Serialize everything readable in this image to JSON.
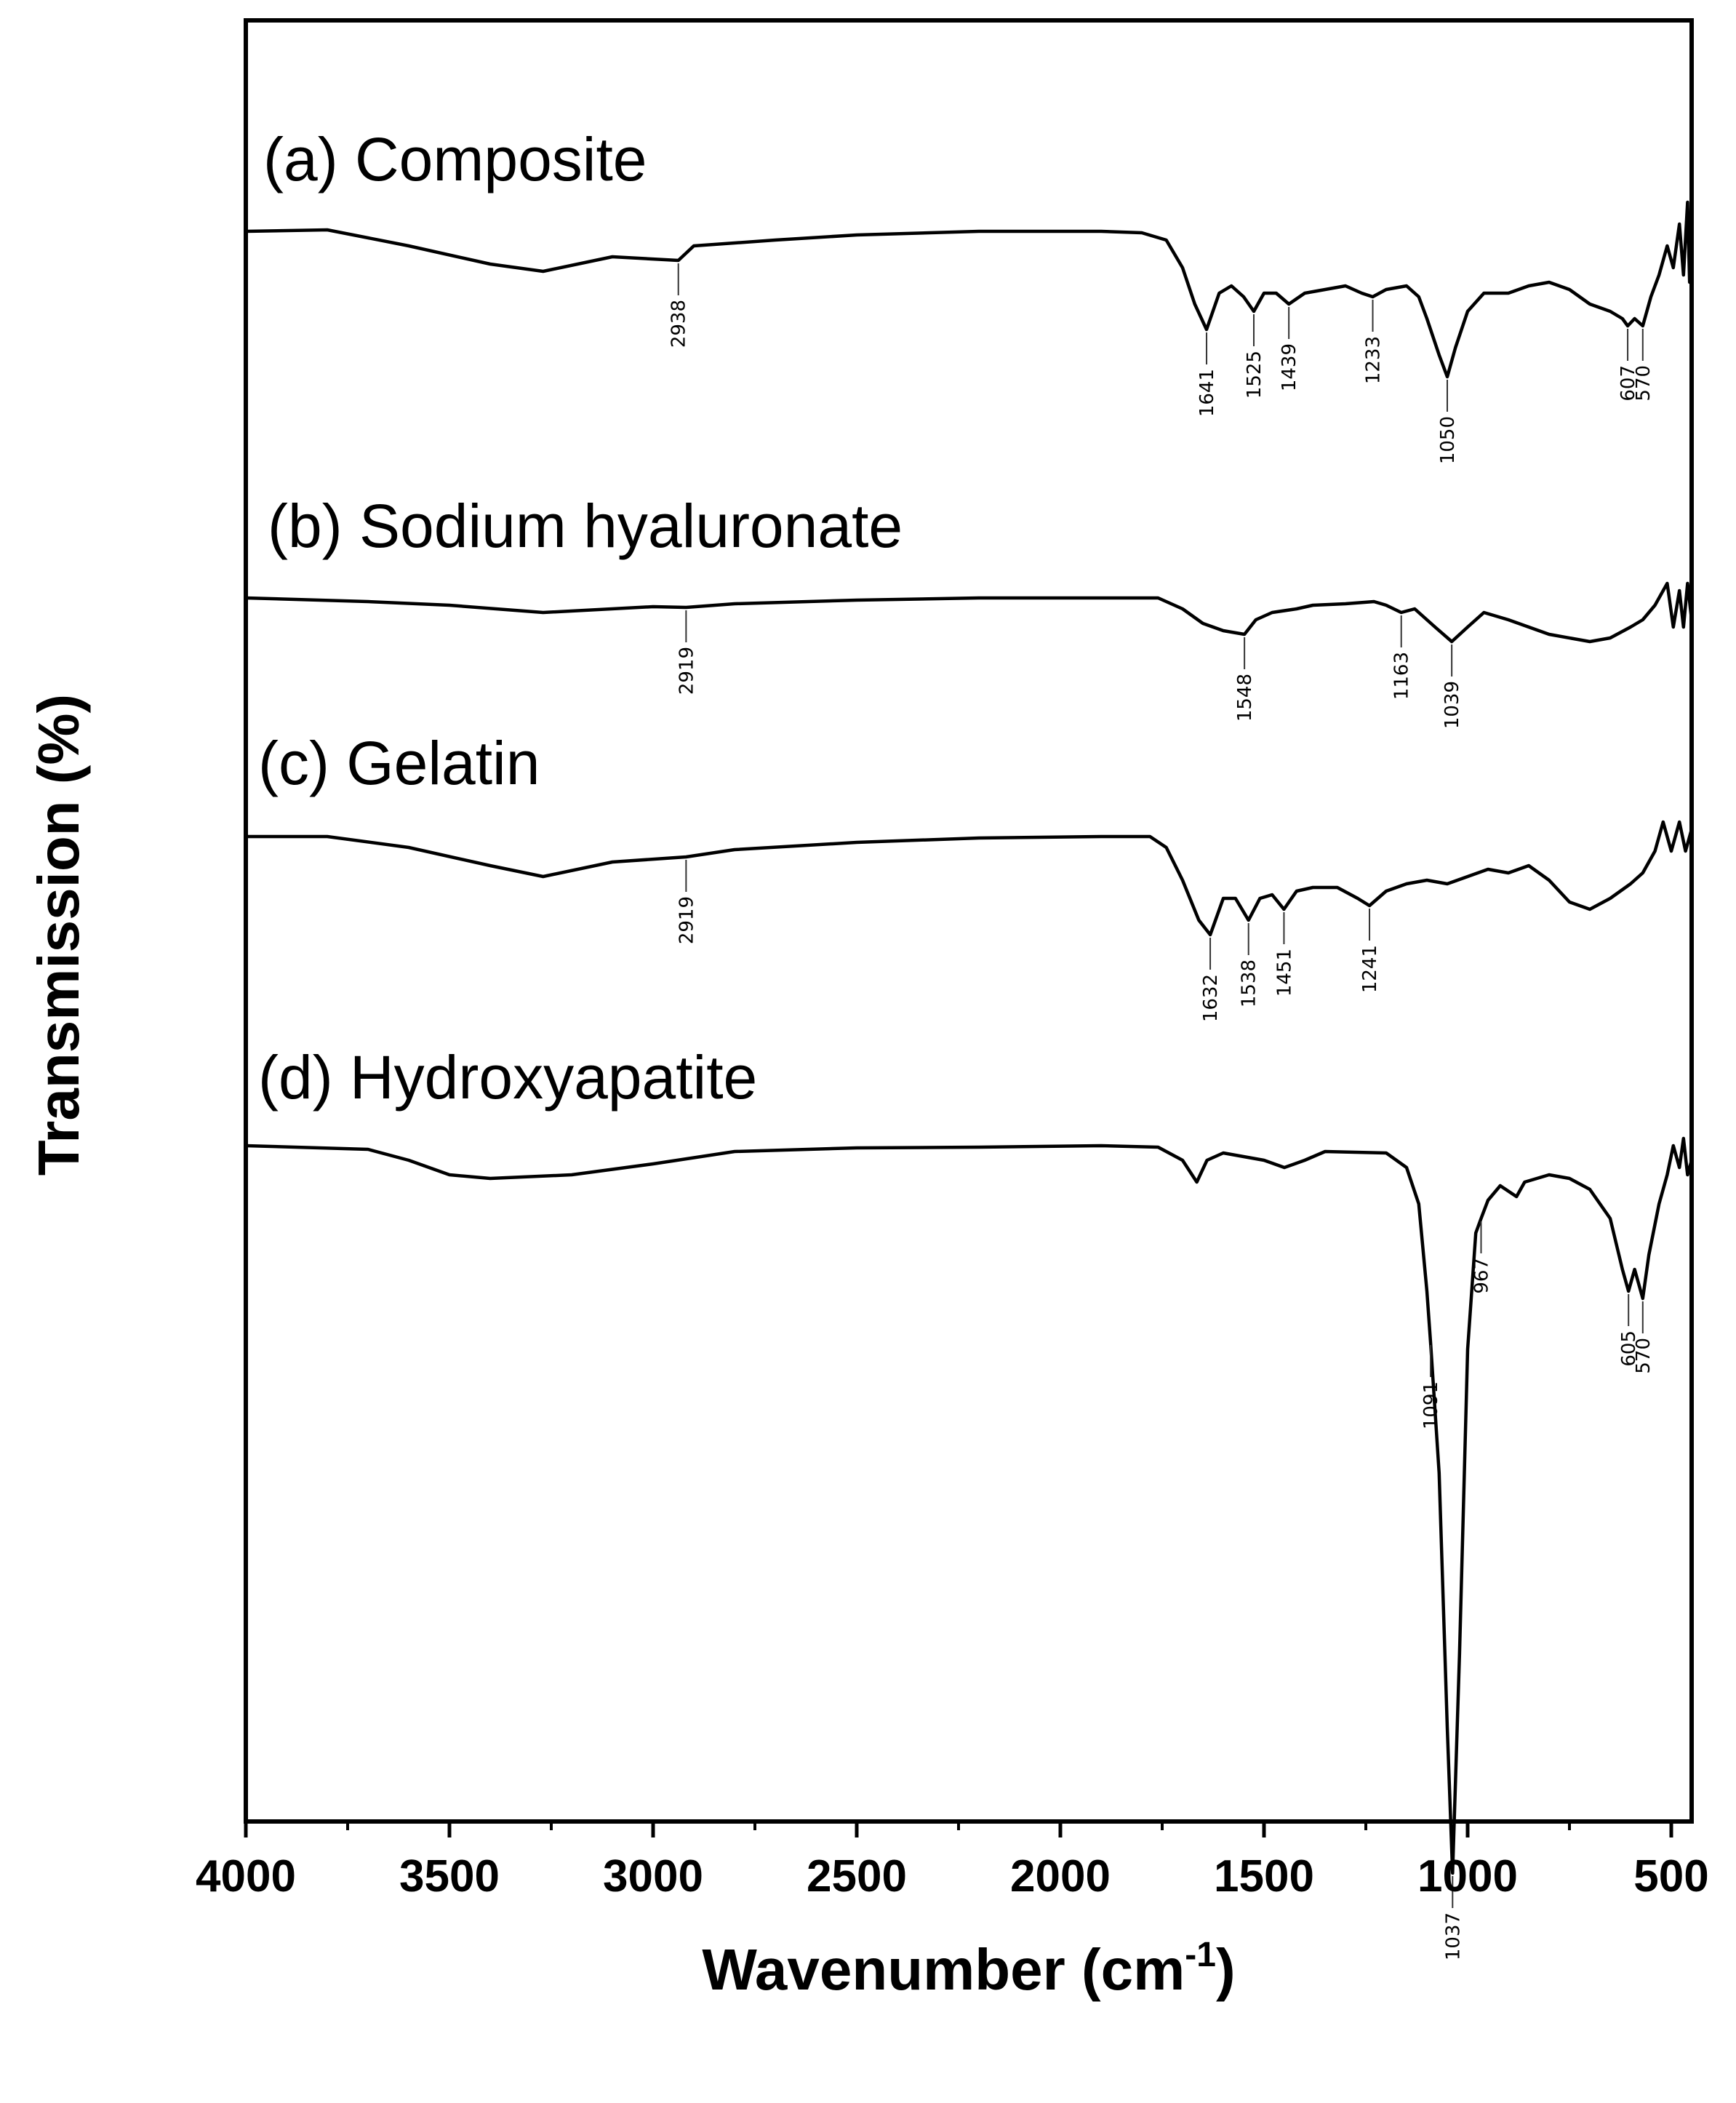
{
  "chart_data": {
    "type": "line",
    "xlabel": "Wavenumber (cm",
    "xlabel_sup": "-1",
    "xlabel_end": ")",
    "ylabel": "Transmission (%)",
    "xlim": [
      4000,
      450
    ],
    "x_reversed": true,
    "xticks": [
      "4000",
      "3500",
      "3000",
      "2500",
      "2000",
      "1500",
      "1000",
      "500"
    ],
    "xtick_values": [
      4000,
      3500,
      3000,
      2500,
      2000,
      1500,
      1000,
      500
    ],
    "grid": false,
    "y_scale": "offset traces, arbitrary units (0 = baseline, 1 = deepest absorption of (d))",
    "series": [
      {
        "name": "(a) Composite",
        "offset": 0.0,
        "points": [
          [
            4000,
            0.0
          ],
          [
            3800,
            -0.002
          ],
          [
            3600,
            0.02
          ],
          [
            3400,
            0.045
          ],
          [
            3270,
            0.055
          ],
          [
            3100,
            0.035
          ],
          [
            2938,
            0.04
          ],
          [
            2900,
            0.02
          ],
          [
            2700,
            0.012
          ],
          [
            2500,
            0.005
          ],
          [
            2200,
            0.0
          ],
          [
            1900,
            0.0
          ],
          [
            1800,
            0.002
          ],
          [
            1740,
            0.012
          ],
          [
            1700,
            0.05
          ],
          [
            1670,
            0.1
          ],
          [
            1641,
            0.135
          ],
          [
            1610,
            0.085
          ],
          [
            1580,
            0.075
          ],
          [
            1550,
            0.09
          ],
          [
            1525,
            0.11
          ],
          [
            1500,
            0.085
          ],
          [
            1470,
            0.085
          ],
          [
            1439,
            0.1
          ],
          [
            1400,
            0.085
          ],
          [
            1350,
            0.08
          ],
          [
            1300,
            0.075
          ],
          [
            1260,
            0.085
          ],
          [
            1233,
            0.09
          ],
          [
            1200,
            0.08
          ],
          [
            1150,
            0.075
          ],
          [
            1120,
            0.09
          ],
          [
            1100,
            0.12
          ],
          [
            1070,
            0.17
          ],
          [
            1050,
            0.2
          ],
          [
            1030,
            0.16
          ],
          [
            1000,
            0.11
          ],
          [
            960,
            0.085
          ],
          [
            900,
            0.085
          ],
          [
            850,
            0.075
          ],
          [
            800,
            0.07
          ],
          [
            750,
            0.08
          ],
          [
            700,
            0.1
          ],
          [
            650,
            0.11
          ],
          [
            620,
            0.12
          ],
          [
            607,
            0.13
          ],
          [
            590,
            0.12
          ],
          [
            570,
            0.13
          ],
          [
            550,
            0.09
          ],
          [
            530,
            0.06
          ],
          [
            510,
            0.02
          ],
          [
            495,
            0.05
          ],
          [
            480,
            -0.01
          ],
          [
            470,
            0.06
          ],
          [
            460,
            -0.04
          ],
          [
            455,
            0.07
          ],
          [
            450,
            0.06
          ]
        ],
        "peaks": [
          2938,
          1641,
          1525,
          1439,
          1233,
          1050,
          607,
          570
        ],
        "peak_labels": [
          "2938",
          "1641",
          "1525",
          "1439",
          "1233",
          "1050",
          "607",
          "570"
        ]
      },
      {
        "name": "(b) Sodium hyaluronate",
        "offset": 0.0,
        "points": [
          [
            4000,
            0.0
          ],
          [
            3700,
            0.005
          ],
          [
            3500,
            0.01
          ],
          [
            3270,
            0.02
          ],
          [
            3000,
            0.012
          ],
          [
            2919,
            0.013
          ],
          [
            2800,
            0.008
          ],
          [
            2500,
            0.003
          ],
          [
            2200,
            0.0
          ],
          [
            1900,
            0.0
          ],
          [
            1760,
            0.0
          ],
          [
            1700,
            0.015
          ],
          [
            1650,
            0.035
          ],
          [
            1600,
            0.045
          ],
          [
            1548,
            0.05
          ],
          [
            1520,
            0.03
          ],
          [
            1480,
            0.02
          ],
          [
            1420,
            0.015
          ],
          [
            1380,
            0.01
          ],
          [
            1300,
            0.008
          ],
          [
            1230,
            0.005
          ],
          [
            1200,
            0.01
          ],
          [
            1163,
            0.02
          ],
          [
            1130,
            0.015
          ],
          [
            1080,
            0.04
          ],
          [
            1039,
            0.06
          ],
          [
            1000,
            0.04
          ],
          [
            960,
            0.02
          ],
          [
            900,
            0.03
          ],
          [
            800,
            0.05
          ],
          [
            700,
            0.06
          ],
          [
            650,
            0.055
          ],
          [
            600,
            0.04
          ],
          [
            570,
            0.03
          ],
          [
            540,
            0.01
          ],
          [
            510,
            -0.02
          ],
          [
            495,
            0.04
          ],
          [
            480,
            -0.01
          ],
          [
            470,
            0.04
          ],
          [
            460,
            -0.02
          ],
          [
            450,
            0.03
          ]
        ],
        "peaks": [
          2919,
          1548,
          1163,
          1039
        ],
        "peak_labels": [
          "2919",
          "1548",
          "1163",
          "1039"
        ]
      },
      {
        "name": "(c) Gelatin",
        "offset": 0.0,
        "points": [
          [
            4000,
            0.0
          ],
          [
            3800,
            0.0
          ],
          [
            3600,
            0.015
          ],
          [
            3400,
            0.04
          ],
          [
            3270,
            0.055
          ],
          [
            3100,
            0.035
          ],
          [
            2919,
            0.028
          ],
          [
            2800,
            0.018
          ],
          [
            2500,
            0.008
          ],
          [
            2200,
            0.002
          ],
          [
            1900,
            0.0
          ],
          [
            1780,
            0.0
          ],
          [
            1740,
            0.015
          ],
          [
            1700,
            0.06
          ],
          [
            1660,
            0.115
          ],
          [
            1632,
            0.135
          ],
          [
            1600,
            0.085
          ],
          [
            1570,
            0.085
          ],
          [
            1538,
            0.115
          ],
          [
            1510,
            0.085
          ],
          [
            1480,
            0.08
          ],
          [
            1451,
            0.1
          ],
          [
            1420,
            0.075
          ],
          [
            1380,
            0.07
          ],
          [
            1320,
            0.07
          ],
          [
            1270,
            0.085
          ],
          [
            1241,
            0.095
          ],
          [
            1200,
            0.075
          ],
          [
            1150,
            0.065
          ],
          [
            1100,
            0.06
          ],
          [
            1050,
            0.065
          ],
          [
            1000,
            0.055
          ],
          [
            950,
            0.045
          ],
          [
            900,
            0.05
          ],
          [
            850,
            0.04
          ],
          [
            800,
            0.06
          ],
          [
            750,
            0.09
          ],
          [
            700,
            0.1
          ],
          [
            650,
            0.085
          ],
          [
            600,
            0.065
          ],
          [
            570,
            0.05
          ],
          [
            540,
            0.02
          ],
          [
            520,
            -0.02
          ],
          [
            500,
            0.02
          ],
          [
            480,
            -0.02
          ],
          [
            465,
            0.02
          ],
          [
            450,
            -0.01
          ]
        ],
        "peaks": [
          2919,
          1632,
          1538,
          1451,
          1241
        ],
        "peak_labels": [
          "2919",
          "1632",
          "1538",
          "1451",
          "1241"
        ]
      },
      {
        "name": "(d) Hydroxyapatite",
        "offset": 0.0,
        "points": [
          [
            4000,
            0.0
          ],
          [
            3700,
            0.005
          ],
          [
            3600,
            0.02
          ],
          [
            3500,
            0.04
          ],
          [
            3400,
            0.045
          ],
          [
            3200,
            0.04
          ],
          [
            3000,
            0.025
          ],
          [
            2800,
            0.008
          ],
          [
            2500,
            0.003
          ],
          [
            2200,
            0.002
          ],
          [
            1900,
            0.0
          ],
          [
            1760,
            0.002
          ],
          [
            1700,
            0.02
          ],
          [
            1665,
            0.05
          ],
          [
            1640,
            0.02
          ],
          [
            1600,
            0.01
          ],
          [
            1500,
            0.02
          ],
          [
            1450,
            0.03
          ],
          [
            1400,
            0.02
          ],
          [
            1350,
            0.008
          ],
          [
            1200,
            0.01
          ],
          [
            1150,
            0.03
          ],
          [
            1120,
            0.08
          ],
          [
            1100,
            0.2
          ],
          [
            1091,
            0.27
          ],
          [
            1070,
            0.45
          ],
          [
            1050,
            0.8
          ],
          [
            1037,
            1.0
          ],
          [
            1020,
            0.7
          ],
          [
            1000,
            0.28
          ],
          [
            980,
            0.12
          ],
          [
            967,
            0.1
          ],
          [
            950,
            0.075
          ],
          [
            920,
            0.055
          ],
          [
            880,
            0.07
          ],
          [
            860,
            0.05
          ],
          [
            800,
            0.04
          ],
          [
            750,
            0.045
          ],
          [
            700,
            0.06
          ],
          [
            650,
            0.1
          ],
          [
            620,
            0.17
          ],
          [
            605,
            0.2
          ],
          [
            590,
            0.17
          ],
          [
            570,
            0.21
          ],
          [
            555,
            0.15
          ],
          [
            530,
            0.08
          ],
          [
            510,
            0.04
          ],
          [
            495,
            0.0
          ],
          [
            480,
            0.03
          ],
          [
            470,
            -0.01
          ],
          [
            460,
            0.04
          ],
          [
            450,
            0.02
          ]
        ],
        "peaks": [
          1091,
          1037,
          967,
          605,
          570
        ],
        "peak_labels": [
          "1091",
          "1037",
          "967",
          "605",
          "570"
        ]
      }
    ]
  }
}
